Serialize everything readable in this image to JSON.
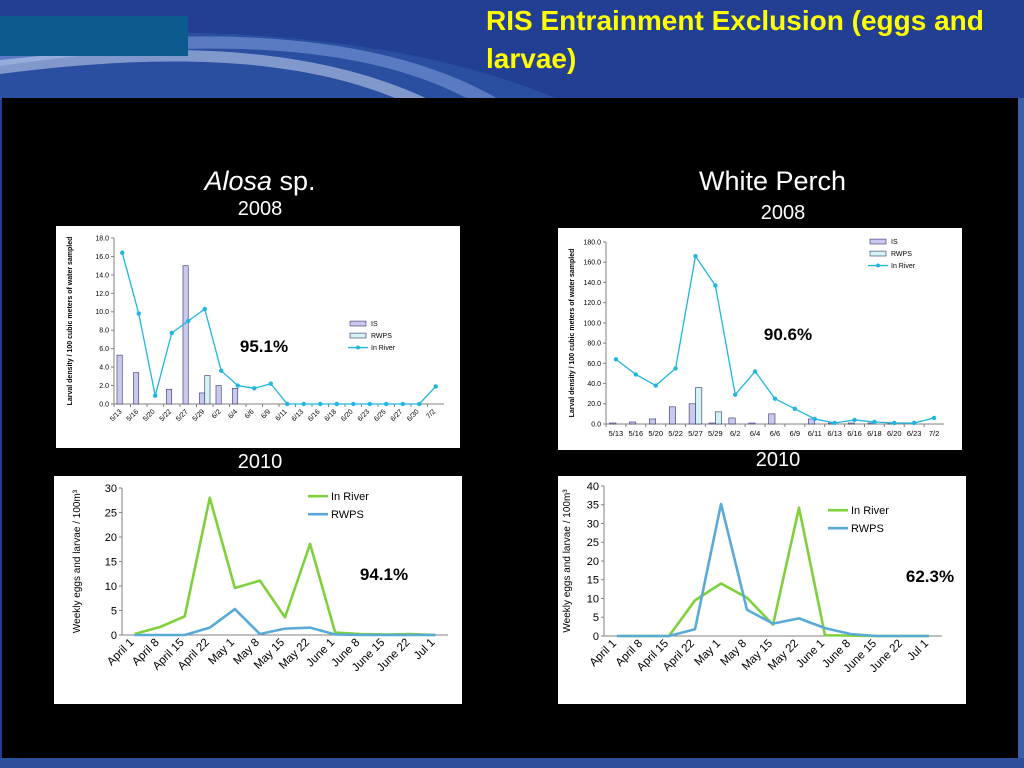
{
  "slide": {
    "title": "RIS Entrainment Exclusion (eggs and larvae)",
    "accent_colors": {
      "title": "#ffff00",
      "header": "#223f94",
      "panel": "#000000"
    }
  },
  "panels": {
    "left": {
      "species_italic": "Alosa",
      "species_rest": " sp.",
      "year_top": "2008",
      "year_bottom": "2010"
    },
    "right": {
      "species": "White Perch",
      "year_top": "2008",
      "year_bottom": "2010"
    }
  },
  "chart_data": [
    {
      "id": "alosa2008",
      "type": "bar+line",
      "ylabel": "Larval density / 100 cubic meters of water sampled",
      "ylim": [
        0,
        18
      ],
      "yticks": [
        "0.0",
        "2.0",
        "4.0",
        "6.0",
        "8.0",
        "10.0",
        "12.0",
        "14.0",
        "16.0",
        "18.0"
      ],
      "categories": [
        "5/13",
        "5/16",
        "5/20",
        "5/22",
        "5/27",
        "5/29",
        "6/2",
        "6/4",
        "6/6",
        "6/9",
        "6/11",
        "6/13",
        "6/16",
        "6/18",
        "6/20",
        "6/23",
        "6/25",
        "6/27",
        "6/30",
        "7/2"
      ],
      "bar_series": [
        {
          "name": "IS",
          "color": "#c9c8ee",
          "values": [
            5.3,
            3.4,
            0,
            1.6,
            15,
            1.2,
            2.0,
            1.7,
            0,
            0,
            0,
            0,
            0,
            0,
            0,
            0,
            0,
            0,
            0,
            0
          ]
        },
        {
          "name": "RWPS",
          "color": "#d4f4f4",
          "values": [
            0,
            0,
            0,
            0,
            0,
            3.1,
            0,
            0,
            0,
            0,
            0,
            0,
            0,
            0,
            0,
            0,
            0,
            0,
            0,
            0
          ]
        }
      ],
      "line_series": [
        {
          "name": "In River",
          "color": "#1fb6e0",
          "values": [
            16.4,
            9.8,
            0.9,
            7.7,
            9.0,
            10.3,
            3.6,
            2.0,
            1.7,
            2.2,
            0,
            0,
            0,
            0,
            0,
            0,
            0,
            0,
            0,
            1.9
          ]
        }
      ],
      "annotation": "95.1%"
    },
    {
      "id": "perch2008",
      "type": "bar+line",
      "ylabel": "Larval density / 100 cubic meters of water sampled",
      "ylim": [
        0,
        180
      ],
      "yticks": [
        "0.0",
        "20.0",
        "40.0",
        "60.0",
        "80.0",
        "100.0",
        "120.0",
        "140.0",
        "160.0",
        "180.0"
      ],
      "categories": [
        "5/13",
        "5/16",
        "5/20",
        "5/22",
        "5/27",
        "5/29",
        "6/2",
        "6/4",
        "6/6",
        "6/9",
        "6/11",
        "6/13",
        "6/16",
        "6/18",
        "6/20",
        "6/23",
        "7/2"
      ],
      "xtick_labels": [
        "5/13",
        "5/16",
        "5/20",
        "5/22",
        "5/27",
        "5/29",
        "6/2",
        "6/4",
        "6/6",
        "6/9",
        "6/11",
        "6/13",
        "6/16",
        "6/18",
        "6/20",
        "6/23",
        "7/2"
      ],
      "bar_series": [
        {
          "name": "IS",
          "color": "#c9c8ee",
          "values": [
            1,
            2,
            5,
            17,
            20,
            1,
            6,
            1,
            10,
            0,
            5,
            1,
            1,
            1,
            1,
            0,
            0
          ]
        },
        {
          "name": "RWPS",
          "color": "#d4f4f4",
          "values": [
            0,
            0,
            0,
            0,
            36,
            12,
            0,
            0,
            0,
            0,
            0,
            0,
            0,
            0,
            0,
            0,
            0
          ]
        }
      ],
      "line_series": [
        {
          "name": "In River",
          "color": "#1fb6e0",
          "values": [
            64,
            49,
            38,
            55,
            166,
            137,
            29,
            52,
            25,
            15,
            5,
            1,
            4,
            2,
            1,
            1,
            6
          ]
        }
      ],
      "annotation": "90.6%"
    },
    {
      "id": "alosa2010",
      "type": "line",
      "ylabel": "Weekly eggs and larvae / 100m³",
      "ylim": [
        0,
        30
      ],
      "yticks": [
        "0",
        "5",
        "10",
        "15",
        "20",
        "25",
        "30"
      ],
      "categories": [
        "April 1",
        "April 8",
        "April 15",
        "April 22",
        "May 1",
        "May 8",
        "May 15",
        "May 22",
        "June 1",
        "June 8",
        "June 15",
        "June 22",
        "Jul 1"
      ],
      "x": [
        "April 1",
        "April 8",
        "April 15",
        "April 22",
        "May 1",
        "May 8",
        "May 15",
        "May 22",
        "June 1",
        "June 8",
        "June 15",
        "June 22",
        "Jul 1"
      ],
      "series": [
        {
          "name": "In River",
          "color": "#7fd13b",
          "values": [
            0.2,
            1.6,
            3.8,
            28,
            9.6,
            11.1,
            3.6,
            18.6,
            0.5,
            0.2,
            0.1,
            0.2,
            0
          ]
        },
        {
          "name": "RWPS",
          "color": "#5aaad8",
          "values": [
            0,
            0,
            0,
            1.5,
            5.3,
            0.2,
            1.3,
            1.5,
            0.1,
            0,
            0,
            0,
            0
          ]
        }
      ],
      "annotation": "94.1%"
    },
    {
      "id": "perch2010",
      "type": "line",
      "ylabel": "Weekly eggs and larvae / 100m³",
      "ylim": [
        0,
        40
      ],
      "yticks": [
        "0",
        "5",
        "10",
        "15",
        "20",
        "25",
        "30",
        "35",
        "40"
      ],
      "categories": [
        "April 1",
        "April 8",
        "April 15",
        "April 22",
        "May 1",
        "May 8",
        "May 15",
        "May 22",
        "June 1",
        "June 8",
        "June 15",
        "June 22",
        "Jul 1"
      ],
      "x": [
        "April 1",
        "April 8",
        "April 15",
        "April 22",
        "May 1",
        "May 8",
        "May 15",
        "May 22",
        "June 1",
        "June 8",
        "June 15",
        "June 22",
        "Jul 1"
      ],
      "series": [
        {
          "name": "In River",
          "color": "#7fd13b",
          "values": [
            0,
            0,
            0,
            9.5,
            14,
            10.2,
            3,
            34.2,
            0.2,
            0.1,
            0,
            0,
            0
          ]
        },
        {
          "name": "RWPS",
          "color": "#5aaad8",
          "values": [
            0,
            0,
            0,
            1.8,
            35.2,
            7,
            3.3,
            4.7,
            2.1,
            0.5,
            0,
            0,
            0
          ]
        }
      ],
      "annotation": "62.3%"
    }
  ]
}
